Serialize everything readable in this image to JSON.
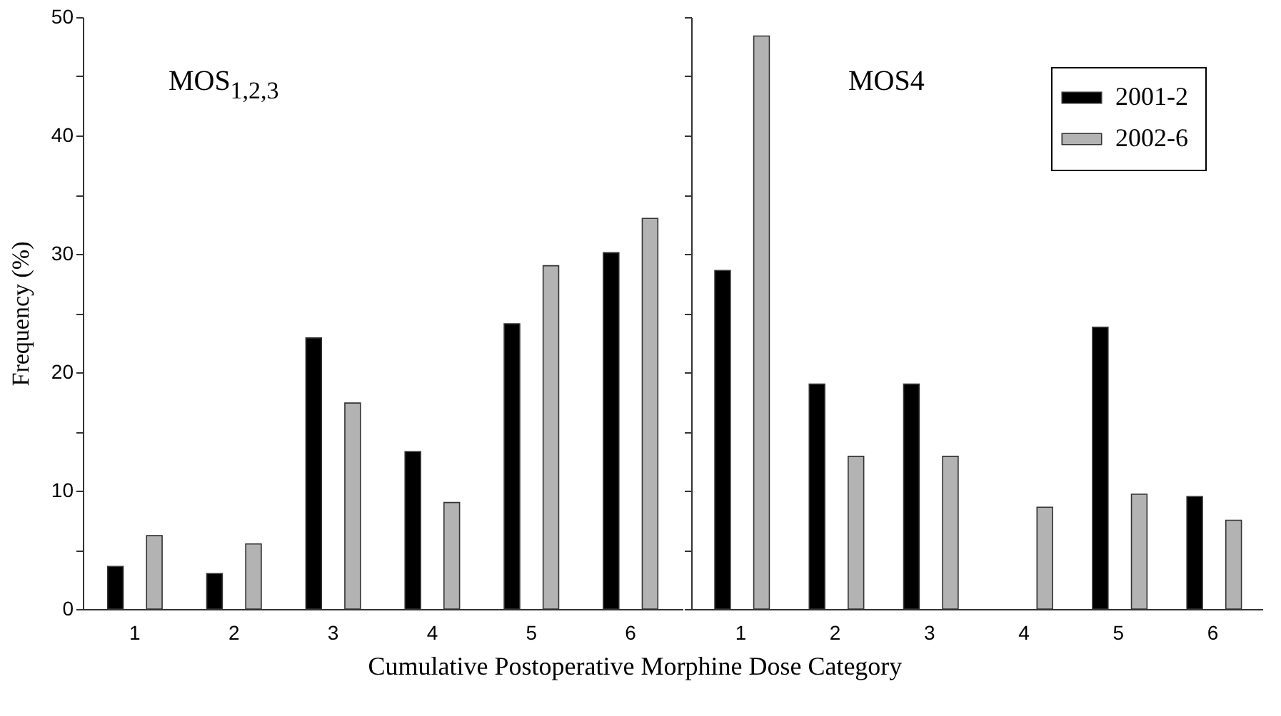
{
  "chart_data": [
    {
      "type": "bar",
      "ylabel": "Frequency (%)",
      "xlabel": "Cumulative Postoperative Morphine Dose Category",
      "annotations": [
        "MOS$_{1,2,3}$"
      ],
      "categories": [
        "1",
        "2",
        "3",
        "4",
        "5",
        "6"
      ],
      "series": [
        {
          "color": "#000000",
          "values": [
            3.6,
            3.0,
            22.9,
            13.3,
            24.1,
            30.1
          ]
        },
        {
          "color": "#b3b3b3",
          "values": [
            6.2,
            5.5,
            17.4,
            9.0,
            29.0,
            33.0
          ]
        }
      ],
      "ylim": [
        0,
        50
      ],
      "yticks": [
        0,
        {
          "value": 5,
          "label": null
        },
        10,
        {
          "value": 15,
          "label": null
        },
        20,
        {
          "value": 25,
          "label": null
        },
        30,
        {
          "value": 35,
          "label": null
        },
        40,
        {
          "value": 45,
          "label": null
        },
        50
      ],
      "grid": false,
      "legend": false
    },
    {
      "type": "bar",
      "annotations": [
        "MOS4"
      ],
      "categories": [
        "1",
        "2",
        "3",
        "4",
        "5",
        "6"
      ],
      "series": [
        {
          "name": "2001-2",
          "color": "#000000",
          "values": [
            28.6,
            19.0,
            19.0,
            0,
            23.8,
            9.5
          ]
        },
        {
          "name": "2002-6",
          "color": "#b3b3b3",
          "values": [
            48.4,
            12.9,
            12.9,
            8.6,
            9.7,
            7.5
          ]
        }
      ],
      "ylim": [
        0,
        50
      ],
      "yticks": [
        0,
        {
          "value": 5,
          "label": null
        },
        10,
        {
          "value": 15,
          "label": null
        },
        20,
        {
          "value": 25,
          "label": null
        },
        30,
        {
          "value": 35,
          "label": null
        },
        40,
        {
          "value": 45,
          "label": null
        },
        50
      ],
      "tick_labels": "x",
      "grid": false,
      "legend": "top right"
    }
  ]
}
